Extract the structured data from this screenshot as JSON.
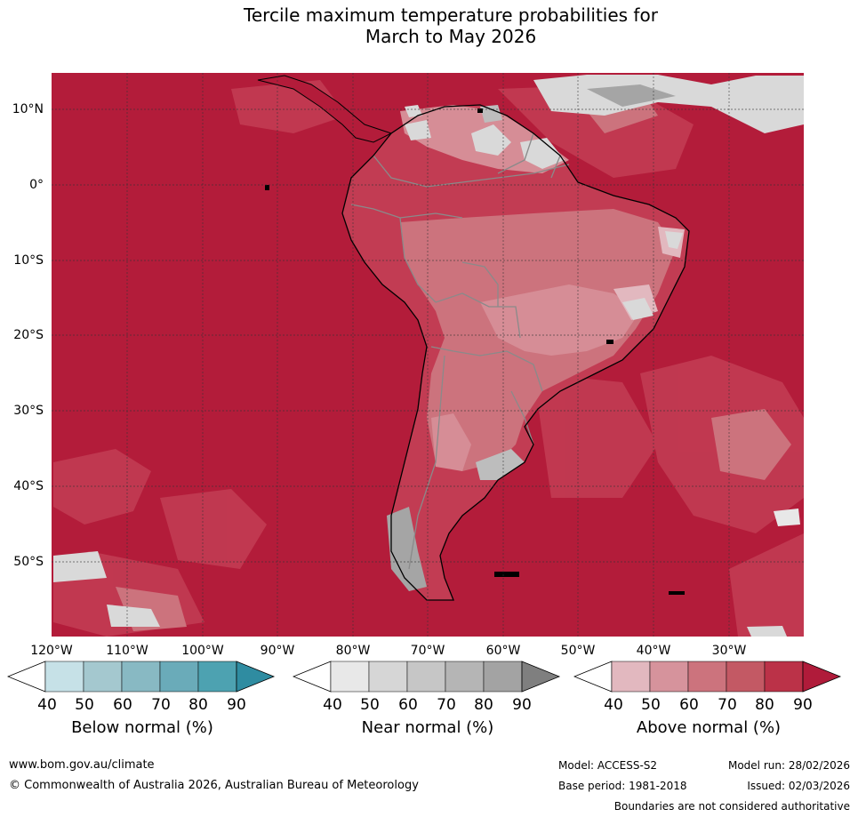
{
  "title_line1": "Tercile maximum temperature probabilities for",
  "title_line2": "March to May 2026",
  "map": {
    "lat_labels": [
      "10°N",
      "0°",
      "10°S",
      "20°S",
      "30°S",
      "40°S",
      "50°S"
    ],
    "lon_labels": [
      "120°W",
      "110°W",
      "100°W",
      "90°W",
      "80°W",
      "70°W",
      "60°W",
      "50°W",
      "40°W",
      "30°W"
    ],
    "colors": {
      "ocean_dominant": "#b31c3a",
      "above_80": "#c23c53",
      "above_70": "#c8636f",
      "above_60": "#d68d96",
      "near_normal_light": "#d9d9d9",
      "near_normal_mid": "#bdbdbd",
      "near_normal_dark": "#a5a5a5"
    }
  },
  "legends": [
    {
      "title": "Below normal (%)",
      "ticks": [
        "40",
        "50",
        "60",
        "70",
        "80",
        "90"
      ],
      "colors": [
        "#ffffff",
        "#c6e1e7",
        "#a4c8cf",
        "#88b9c3",
        "#6aabb9",
        "#4da2b1",
        "#2f8ca1"
      ]
    },
    {
      "title": "Near normal (%)",
      "ticks": [
        "40",
        "50",
        "60",
        "70",
        "80",
        "90"
      ],
      "colors": [
        "#ffffff",
        "#e8e8e8",
        "#d6d6d6",
        "#c6c6c6",
        "#b5b5b5",
        "#a3a3a3",
        "#7f7f7f"
      ]
    },
    {
      "title": "Above normal (%)",
      "ticks": [
        "40",
        "50",
        "60",
        "70",
        "80",
        "90"
      ],
      "colors": [
        "#ffffff",
        "#e2b8bf",
        "#d6939c",
        "#cc737d",
        "#c35964",
        "#bb3248",
        "#b01b3a"
      ]
    }
  ],
  "footer": {
    "website": "www.bom.gov.au/climate",
    "copyright": "© Commonwealth of Australia 2026, Australian Bureau of Meteorology",
    "model": "Model: ACCESS-S2",
    "base_period": "Base period: 1981-2018",
    "model_run": "Model run: 28/02/2026",
    "issued": "Issued: 02/03/2026",
    "disclaimer": "Boundaries are not considered authoritative"
  }
}
